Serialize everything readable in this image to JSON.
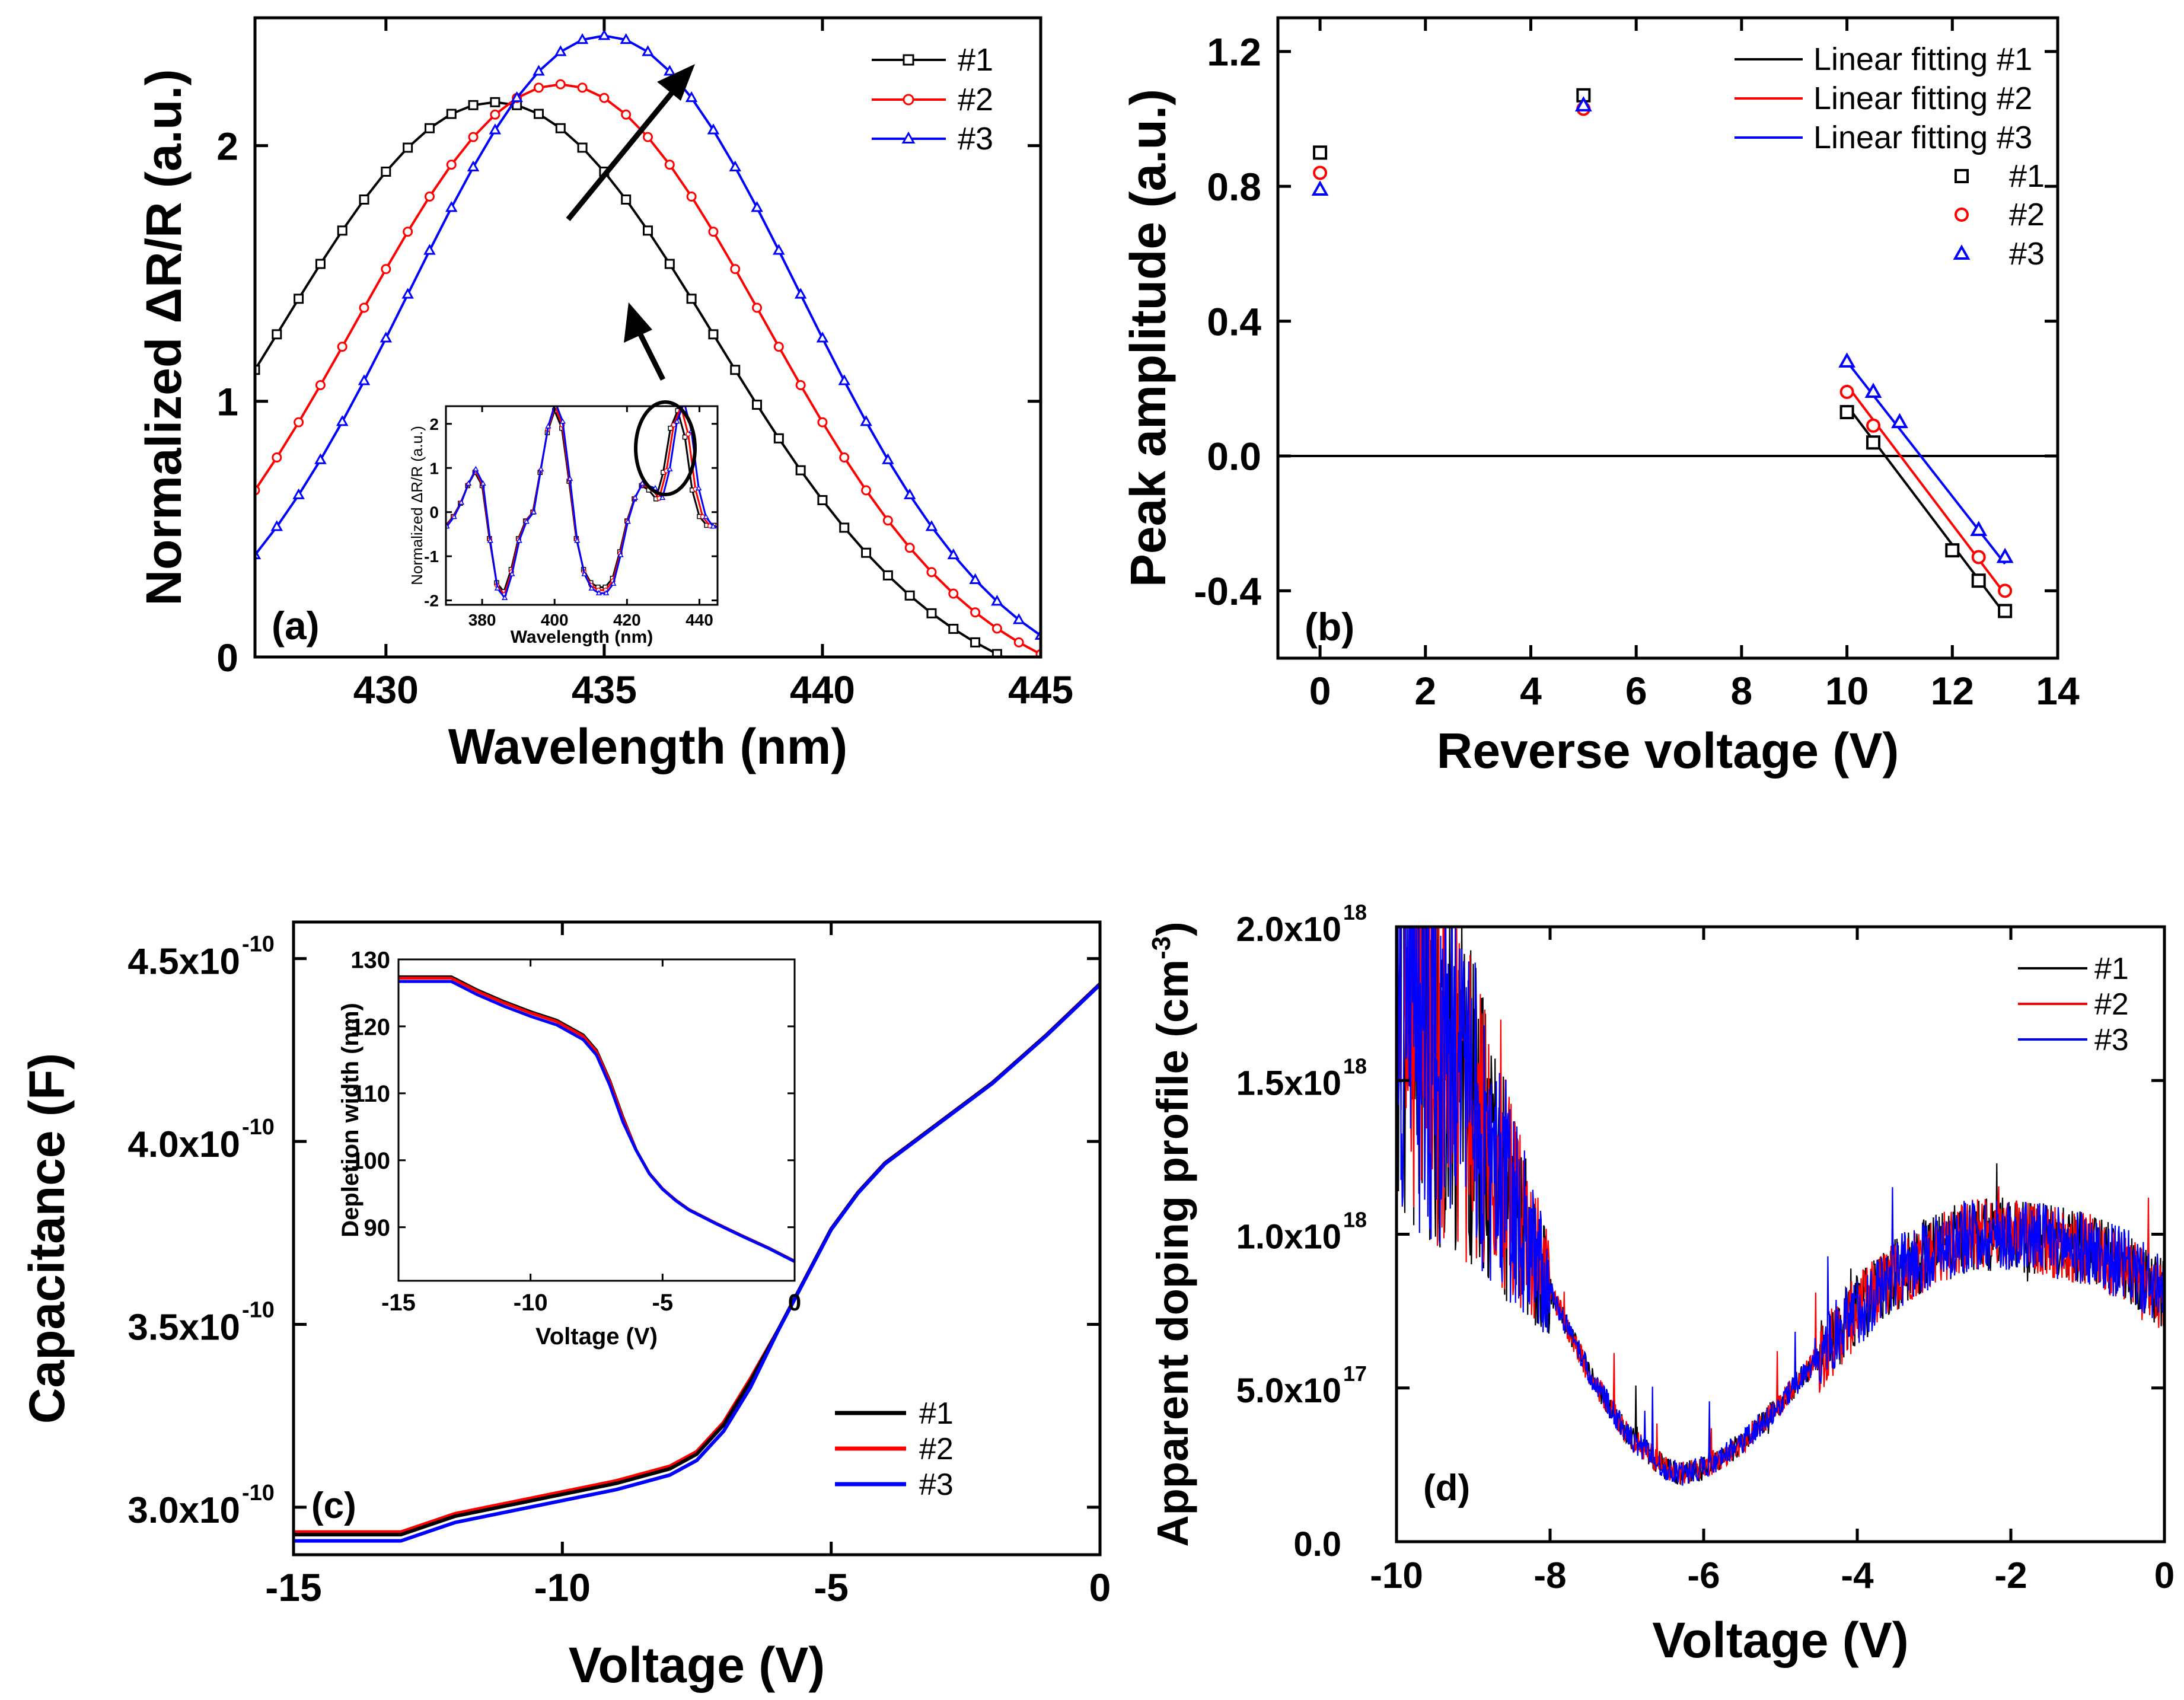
{
  "colors": {
    "s1": "#000000",
    "s2": "#ff0000",
    "s3": "#0000ff"
  },
  "chart_data": [
    {
      "id": "a",
      "type": "line",
      "panel_label": "(a)",
      "xlabel": "Wavelength (nm)",
      "ylabel": "Normalized ΔR/R (a.u.)",
      "xlim": [
        427,
        445
      ],
      "ylim": [
        0,
        2.5
      ],
      "xticks": [
        430,
        435,
        440,
        445
      ],
      "yticks": [
        0,
        1,
        2
      ],
      "legend": [
        "#1",
        "#2",
        "#3"
      ],
      "legend_position": "top-right",
      "series": [
        {
          "name": "#1",
          "marker": "square",
          "peak_x": 432.5,
          "peak_y": 2.17,
          "sigma": 4.9,
          "x": [
            427,
            427.5,
            428,
            428.5,
            429,
            429.5,
            430,
            430.5,
            431,
            431.5,
            432,
            432.5,
            433,
            433.5,
            434,
            434.5,
            435,
            435.5,
            436,
            436.5,
            437,
            437.5,
            438,
            438.5,
            439,
            439.5,
            440,
            440.5,
            441,
            441.5,
            442,
            442.5,
            443,
            443.5,
            444,
            444.5,
            445
          ]
        },
        {
          "name": "#2",
          "marker": "circle",
          "peak_x": 434.0,
          "peak_y": 2.24,
          "sigma": 4.6,
          "x": [
            427,
            427.5,
            428,
            428.5,
            429,
            429.5,
            430,
            430.5,
            431,
            431.5,
            432,
            432.5,
            433,
            433.5,
            434,
            434.5,
            435,
            435.5,
            436,
            436.5,
            437,
            437.5,
            438,
            438.5,
            439,
            439.5,
            440,
            440.5,
            441,
            441.5,
            442,
            442.5,
            443,
            443.5,
            444,
            444.5,
            445
          ]
        },
        {
          "name": "#3",
          "marker": "triangle",
          "peak_x": 435.0,
          "peak_y": 2.43,
          "sigma": 4.4,
          "x": [
            427,
            427.5,
            428,
            428.5,
            429,
            429.5,
            430,
            430.5,
            431,
            431.5,
            432,
            432.5,
            433,
            433.5,
            434,
            434.5,
            435,
            435.5,
            436,
            436.5,
            437,
            437.5,
            438,
            438.5,
            439,
            439.5,
            440,
            440.5,
            441,
            441.5,
            442,
            442.5,
            443,
            443.5,
            444,
            444.5,
            445
          ]
        }
      ],
      "inset": {
        "xlabel": "Wavelength (nm)",
        "ylabel": "Normalized ΔR/R (a.u.)",
        "xlim": [
          370,
          445
        ],
        "ylim": [
          -2.1,
          2.4
        ],
        "xticks": [
          380,
          400,
          420,
          440
        ],
        "yticks": [
          -2,
          -1,
          0,
          1,
          2
        ],
        "curve_x": [
          370,
          372,
          374,
          376,
          378,
          380,
          382,
          384,
          386,
          388,
          390,
          392,
          394,
          396,
          398,
          400,
          402,
          404,
          406,
          408,
          410,
          412,
          414,
          416,
          418,
          420,
          422,
          424,
          426,
          428,
          430,
          432,
          434,
          436,
          438,
          440,
          442,
          444
        ],
        "curve_y": [
          -0.3,
          -0.1,
          0.2,
          0.6,
          0.9,
          0.6,
          -0.6,
          -1.6,
          -1.8,
          -1.3,
          -0.6,
          -0.2,
          0.0,
          0.9,
          1.8,
          2.3,
          1.9,
          0.7,
          -0.6,
          -1.3,
          -1.6,
          -1.7,
          -1.7,
          -1.5,
          -0.9,
          -0.2,
          0.3,
          0.6,
          0.5,
          0.3,
          0.9,
          1.9,
          2.3,
          1.7,
          0.5,
          -0.1,
          -0.3,
          -0.3
        ]
      }
    },
    {
      "id": "b",
      "type": "scatter",
      "panel_label": "(b)",
      "xlabel": "Reverse voltage (V)",
      "ylabel": "Peak amplitude (a.u.)",
      "xlim": [
        -0.8,
        14
      ],
      "ylim": [
        -0.6,
        1.3
      ],
      "xticks": [
        0,
        2,
        4,
        6,
        8,
        10,
        12,
        14
      ],
      "yticks": [
        -0.4,
        0.0,
        0.4,
        0.8,
        1.2
      ],
      "ytick_labels": [
        "-0.4",
        "0.0",
        "0.4",
        "0.8",
        "1.2"
      ],
      "legend": [
        "Linear fitting #1",
        "Linear fitting #2",
        "Linear fitting #3",
        "#1",
        "#2",
        "#3"
      ],
      "legend_position": "top-right",
      "series": [
        {
          "name": "#1",
          "marker": "square",
          "x": [
            0,
            5,
            10,
            10.5,
            12,
            12.5,
            13
          ],
          "y": [
            0.9,
            1.07,
            0.13,
            0.04,
            -0.28,
            -0.37,
            -0.46
          ]
        },
        {
          "name": "#2",
          "marker": "circle",
          "x": [
            0,
            5,
            10,
            10.5,
            12.5,
            13
          ],
          "y": [
            0.84,
            1.03,
            0.19,
            0.09,
            -0.3,
            -0.4
          ]
        },
        {
          "name": "#3",
          "marker": "triangle",
          "x": [
            0,
            5,
            10,
            10.5,
            11,
            12.5,
            13
          ],
          "y": [
            0.79,
            1.04,
            0.28,
            0.19,
            0.1,
            -0.22,
            -0.3
          ]
        }
      ],
      "fits": [
        {
          "name": "Linear fitting #1",
          "x": [
            10,
            13
          ],
          "y": [
            0.15,
            -0.47
          ]
        },
        {
          "name": "Linear fitting #2",
          "x": [
            10,
            13
          ],
          "y": [
            0.21,
            -0.41
          ]
        },
        {
          "name": "Linear fitting #3",
          "x": [
            10,
            13
          ],
          "y": [
            0.28,
            -0.32
          ]
        }
      ],
      "hline_y": 0
    },
    {
      "id": "c",
      "type": "line",
      "panel_label": "(c)",
      "xlabel": "Voltage (V)",
      "ylabel": "Capacitance (F)",
      "xlim": [
        -15,
        0
      ],
      "ylim": [
        2.87e-10,
        4.6e-10
      ],
      "xticks": [
        -15,
        -10,
        -5,
        0
      ],
      "yticks": [
        3e-10,
        3.5e-10,
        4e-10,
        4.5e-10
      ],
      "ytick_mantissa": [
        "3.0x10",
        "3.5x10",
        "4.0x10",
        "4.5x10"
      ],
      "ytick_exponent": "-10",
      "legend": [
        "#1",
        "#2",
        "#3"
      ],
      "legend_position": "bottom-right",
      "x": [
        -15,
        -14,
        -13,
        -12,
        -11,
        -10,
        -9,
        -8,
        -7.5,
        -7,
        -6.5,
        -6,
        -5.5,
        -5,
        -4.5,
        -4,
        -3,
        -2,
        -1,
        0
      ],
      "y": [
        2.92,
        2.92,
        2.92,
        2.97,
        3.0,
        3.03,
        3.06,
        3.1,
        3.14,
        3.22,
        3.34,
        3.48,
        3.62,
        3.76,
        3.86,
        3.94,
        4.05,
        4.16,
        4.29,
        4.43
      ],
      "y_scale": 1e-10,
      "inset": {
        "xlabel": "Voltage (V)",
        "ylabel": "Depletion width (nm)",
        "xlim": [
          -15,
          0
        ],
        "ylim": [
          82,
          130
        ],
        "xticks": [
          -15,
          -10,
          -5,
          0
        ],
        "yticks": [
          90,
          100,
          110,
          120,
          130
        ],
        "x": [
          -15,
          -14,
          -13,
          -12,
          -11,
          -10,
          -9,
          -8,
          -7.5,
          -7,
          -6.5,
          -6,
          -5.5,
          -5,
          -4.5,
          -4,
          -3,
          -2,
          -1,
          0
        ],
        "y": [
          127.0,
          127.0,
          127.0,
          125.0,
          123.3,
          121.8,
          120.5,
          118.3,
          116.0,
          111.5,
          106.0,
          101.5,
          98.0,
          95.7,
          94.0,
          92.6,
          90.6,
          88.7,
          86.9,
          84.9
        ]
      }
    },
    {
      "id": "d",
      "type": "line",
      "panel_label": "(d)",
      "xlabel": "Voltage (V)",
      "ylabel": "Apparent doping profile (cm-3)",
      "ylabel_main": "Apparent doping profile (cm",
      "ylabel_sup": "-3",
      "ylabel_close": ")",
      "xlim": [
        -10,
        0
      ],
      "ylim": [
        0,
        2e+18
      ],
      "xticks": [
        -10,
        -8,
        -6,
        -4,
        -2,
        0
      ],
      "yticks": [
        0,
        5e+17,
        1e+18,
        1.5e+18,
        2e+18
      ],
      "ytick_mantissa": [
        "0.0",
        "5.0x10",
        "1.0x10",
        "1.5x10",
        "2.0x10"
      ],
      "ytick_exponent": [
        "",
        "17",
        "18",
        "18",
        "18"
      ],
      "legend": [
        "#1",
        "#2",
        "#3"
      ],
      "legend_position": "top-right",
      "trend_x": [
        -10,
        -9.5,
        -9,
        -8.5,
        -8,
        -7.5,
        -7,
        -6.5,
        -6.3,
        -6,
        -5.5,
        -5,
        -4.5,
        -4,
        -3.5,
        -3,
        -2.5,
        -2,
        -1.5,
        -1,
        -0.5,
        0
      ],
      "trend_y": [
        1.9,
        1.65,
        1.4,
        1.1,
        0.82,
        0.55,
        0.35,
        0.24,
        0.22,
        0.24,
        0.32,
        0.45,
        0.6,
        0.75,
        0.87,
        0.95,
        1.0,
        1.0,
        0.98,
        0.95,
        0.9,
        0.8
      ],
      "y_scale": 1e+18
    }
  ]
}
